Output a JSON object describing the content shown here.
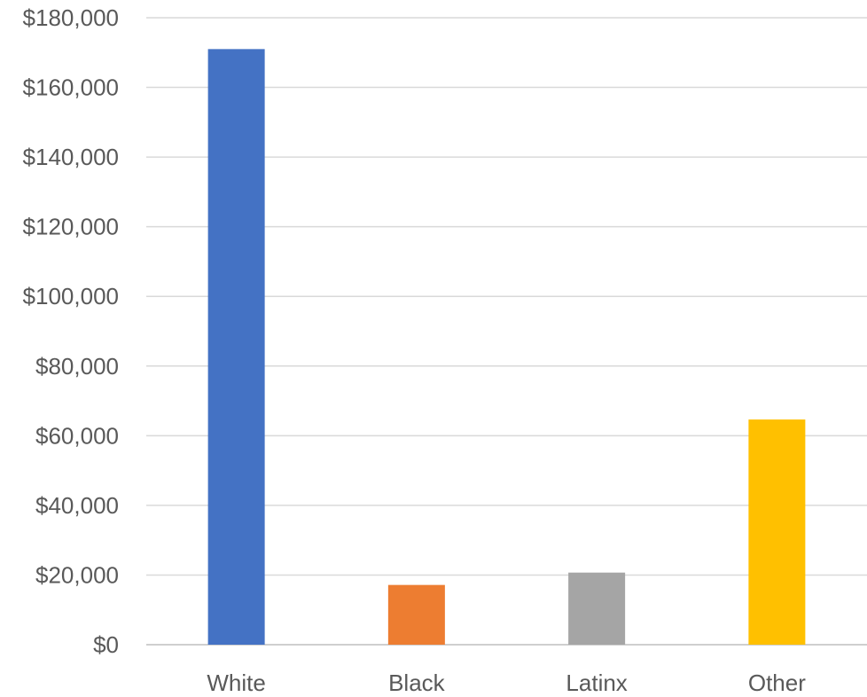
{
  "chart_data": {
    "type": "bar",
    "title": "",
    "xlabel": "",
    "ylabel": "",
    "categories": [
      "White",
      "Black",
      "Latinx",
      "Other"
    ],
    "values": [
      171000,
      17150,
      20700,
      64650
    ],
    "colors": [
      "#4472c4",
      "#ed7d31",
      "#a5a5a5",
      "#ffc000"
    ],
    "ylim": [
      0,
      180000
    ],
    "yticks": [
      0,
      20000,
      40000,
      60000,
      80000,
      100000,
      120000,
      140000,
      160000,
      180000
    ],
    "ytick_labels": [
      "$0",
      "$20,000",
      "$40,000",
      "$60,000",
      "$80,000",
      "$100,000",
      "$120,000",
      "$140,000",
      "$160,000",
      "$180,000"
    ],
    "grid": true,
    "legend": "none"
  }
}
